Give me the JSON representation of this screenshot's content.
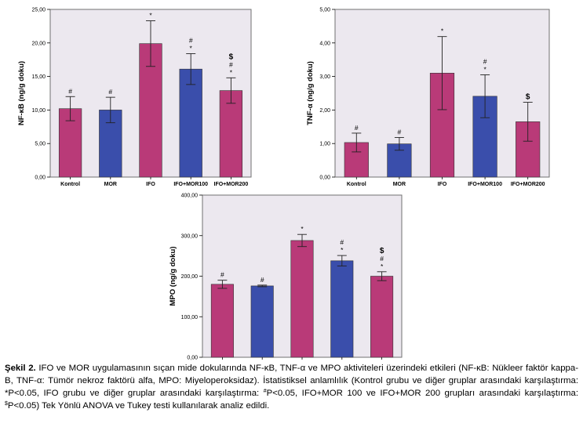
{
  "colors": {
    "pink": "#b93a78",
    "blue": "#3a4eab",
    "plot_bg": "#ece8ef",
    "frame": "#707070"
  },
  "chart_data": [
    {
      "type": "bar",
      "ylabel": "NF-κB (ng/g doku)",
      "ylim": [
        0,
        25
      ],
      "yticks": [
        "0,00",
        "5,00",
        "10,00",
        "15,00",
        "20,00",
        "25,00"
      ],
      "categories": [
        "Kontrol",
        "MOR",
        "IFO",
        "IFO+MOR100",
        "IFO+MOR200"
      ],
      "values": [
        10.2,
        10.0,
        19.9,
        16.1,
        12.9
      ],
      "errors": [
        1.8,
        1.9,
        3.4,
        2.3,
        1.9
      ],
      "bar_colors": [
        "pink",
        "blue",
        "pink",
        "blue",
        "pink"
      ],
      "significance": [
        [
          "#"
        ],
        [
          "#"
        ],
        [
          "*"
        ],
        [
          "#",
          "*"
        ],
        [
          "$",
          "#",
          "*"
        ]
      ],
      "grid": false
    },
    {
      "type": "bar",
      "ylabel": "TNF-α (ng/g doku)",
      "ylim": [
        0,
        5
      ],
      "yticks": [
        "0,00",
        "1,00",
        "2,00",
        "3,00",
        "4,00",
        "5,00"
      ],
      "categories": [
        "Kontrol",
        "MOR",
        "IFO",
        "IFO+MOR100",
        "IFO+MOR200"
      ],
      "values": [
        1.03,
        0.99,
        3.1,
        2.41,
        1.65
      ],
      "errors": [
        0.28,
        0.19,
        1.09,
        0.64,
        0.58
      ],
      "bar_colors": [
        "pink",
        "blue",
        "pink",
        "blue",
        "pink"
      ],
      "significance": [
        [
          "#"
        ],
        [
          "#"
        ],
        [
          "*"
        ],
        [
          "#",
          "*"
        ],
        [
          "$"
        ]
      ],
      "grid": false
    },
    {
      "type": "bar",
      "ylabel": "MPO (ng/g doku)",
      "ylim": [
        0,
        400
      ],
      "yticks": [
        "0,00",
        "100,00",
        "200,00",
        "300,00",
        "400,00"
      ],
      "categories": [
        "Kontrol",
        "MOR",
        "IFO",
        "IFO+MOR100",
        "IFO+MOR200"
      ],
      "values": [
        180,
        176,
        288,
        238,
        200
      ],
      "errors": [
        10,
        2,
        15,
        13,
        11
      ],
      "bar_colors": [
        "pink",
        "blue",
        "pink",
        "blue",
        "pink"
      ],
      "significance": [
        [
          "#"
        ],
        [
          "#"
        ],
        [
          "*"
        ],
        [
          "#",
          "*"
        ],
        [
          "$",
          "#",
          "*"
        ]
      ],
      "grid": false
    }
  ],
  "caption": {
    "label": "Şekil 2.",
    "text1": "IFO ve MOR uygulamasının sıçan mide dokularında NF-κB, TNF-α ve MPO aktiviteleri üzerindeki etkileri (NF-κB: Nükleer faktör kappa-B, TNF-α: Tümör nekroz faktörü alfa, MPO: Miyeloperoksidaz). İstatistiksel anlamlılık (Kontrol grubu ve diğer gruplar arasındaki karşılaştırma: *P<0.05, IFO grubu ve diğer gruplar arasındaki karşılaştırma: ",
    "sup1": "#",
    "text2": "P<0.05, IFO+MOR 100 ve IFO+MOR 200 grupları arasındaki karşılaştırma: ",
    "sup2": "$",
    "text3": "P<0.05) Tek Yönlü ANOVA ve Tukey testi kullanılarak analiz edildi."
  }
}
